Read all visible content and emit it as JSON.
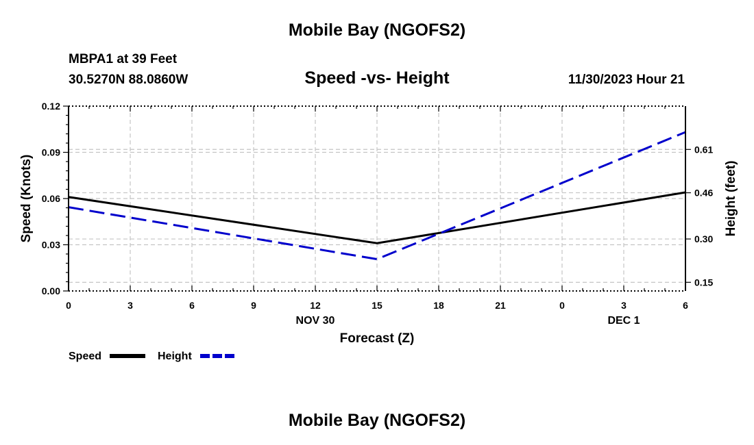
{
  "header": {
    "title": "Mobile Bay (NGOFS2)",
    "station": "MBPA1 at 39 Feet",
    "coordinates": "30.5270N  88.0860W",
    "chart_title": "Speed -vs- Height",
    "datetime": "11/30/2023 Hour 21"
  },
  "footer": {
    "title": "Mobile Bay (NGOFS2)"
  },
  "chart_data": {
    "type": "line",
    "title": "Speed -vs- Height",
    "xlabel": "Forecast (Z)",
    "ylabel": "Speed (Knots)",
    "y2label": "Height (feet)",
    "x_tick_labels": [
      "0",
      "3",
      "6",
      "9",
      "12",
      "15",
      "18",
      "21",
      "0",
      "3",
      "6"
    ],
    "x_range_hours": [
      0,
      30
    ],
    "date_labels": [
      {
        "text": "NOV 30",
        "hour": 12
      },
      {
        "text": "DEC 1",
        "hour": 27
      }
    ],
    "y_ticks": [
      "0.00",
      "0.03",
      "0.06",
      "0.09",
      "0.12"
    ],
    "ylim": [
      0,
      0.12
    ],
    "y2_ticks": [
      "0.15",
      "0.30",
      "0.46",
      "0.61"
    ],
    "y2_tick_values": [
      0.15,
      0.3,
      0.46,
      0.61
    ],
    "y2lim": [
      0.12,
      0.76
    ],
    "grid": true,
    "legend_position": "bottom-left",
    "series": [
      {
        "name": "Speed",
        "axis": "left",
        "color": "#000000",
        "dash": "solid",
        "x": [
          0,
          15,
          30
        ],
        "y": [
          0.061,
          0.031,
          0.064
        ]
      },
      {
        "name": "Height",
        "axis": "right",
        "color": "#0000cc",
        "dash": "dashed",
        "x": [
          0,
          15,
          30
        ],
        "y": [
          0.41,
          0.23,
          0.67
        ]
      }
    ]
  }
}
